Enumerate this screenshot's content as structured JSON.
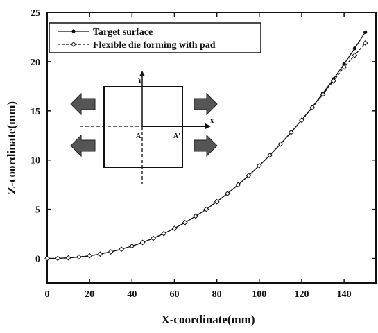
{
  "chart_data": {
    "type": "line",
    "xlabel": "X-coordinate(mm)",
    "ylabel": "Z-coordinate(mm)",
    "x": [
      0,
      5,
      10,
      15,
      20,
      25,
      30,
      35,
      40,
      45,
      50,
      55,
      60,
      65,
      70,
      75,
      80,
      85,
      90,
      95,
      100,
      105,
      110,
      115,
      120,
      125,
      130,
      135,
      140,
      145,
      150
    ],
    "series": [
      {
        "name": "Target surface",
        "color": "#111111",
        "marker": "circle",
        "values": [
          0,
          0.01,
          0.06,
          0.15,
          0.27,
          0.45,
          0.67,
          0.94,
          1.26,
          1.63,
          2.05,
          2.53,
          3.06,
          3.65,
          4.3,
          5,
          5.77,
          6.59,
          7.48,
          8.42,
          9.43,
          10.49,
          11.63,
          12.82,
          14.08,
          15.4,
          16.79,
          18.24,
          19.76,
          21.35,
          23
        ]
      },
      {
        "name": "Flexible die forming with pad",
        "color": "#111111",
        "marker": "diamond",
        "dashed": true,
        "values": [
          0,
          0.01,
          0.06,
          0.15,
          0.27,
          0.45,
          0.67,
          0.94,
          1.26,
          1.63,
          2.05,
          2.53,
          3.06,
          3.65,
          4.3,
          5,
          5.77,
          6.59,
          7.48,
          8.42,
          9.43,
          10.49,
          11.63,
          12.82,
          14.05,
          15.33,
          16.68,
          18.05,
          19.45,
          20.65,
          21.9
        ]
      }
    ],
    "xlim": [
      0,
      155
    ],
    "xticks": [
      0,
      20,
      40,
      60,
      80,
      100,
      120,
      140
    ],
    "ylim": [
      -2.5,
      25
    ],
    "yticks": [
      0,
      5,
      10,
      15,
      20,
      25
    ],
    "legend": "upper-left",
    "inset": {
      "labels": [
        "Y",
        "X",
        "A",
        "A'"
      ]
    }
  }
}
